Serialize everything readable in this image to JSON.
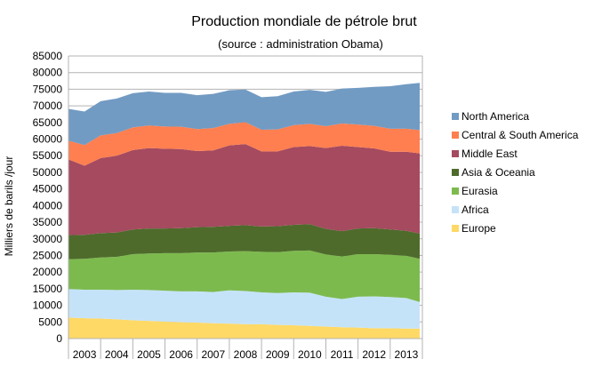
{
  "chart_data": {
    "type": "area",
    "stacked": true,
    "title": "Production mondiale de pétrole brut",
    "subtitle": "(source : administration Obama)",
    "ylabel": "Milliers de barils /jour",
    "xlabel": "",
    "ylim": [
      0,
      85000
    ],
    "y_ticks": [
      0,
      5000,
      10000,
      15000,
      20000,
      25000,
      30000,
      35000,
      40000,
      45000,
      50000,
      55000,
      60000,
      65000,
      70000,
      75000,
      80000,
      85000
    ],
    "grid": "horizontal",
    "legend_position": "right",
    "categories": [
      "2003",
      "2004",
      "2005",
      "2006",
      "2007",
      "2008",
      "2009",
      "2010",
      "2011",
      "2012",
      "2013"
    ],
    "x": [
      "2003-01",
      "2003-07",
      "2004-01",
      "2004-07",
      "2005-01",
      "2005-07",
      "2006-01",
      "2006-07",
      "2007-01",
      "2007-07",
      "2008-01",
      "2008-07",
      "2009-01",
      "2009-07",
      "2010-01",
      "2010-07",
      "2011-01",
      "2011-07",
      "2012-01",
      "2012-07",
      "2013-01",
      "2013-07",
      "2013-12"
    ],
    "series": [
      {
        "name": "Europe",
        "color": "#ffd966",
        "values": [
          6300,
          6100,
          6000,
          5800,
          5500,
          5300,
          5100,
          4900,
          4800,
          4600,
          4500,
          4300,
          4300,
          4100,
          4000,
          3800,
          3600,
          3400,
          3300,
          3100,
          3100,
          3000,
          3000
        ]
      },
      {
        "name": "Africa",
        "color": "#c5e3f8",
        "values": [
          8600,
          8600,
          8700,
          8800,
          9200,
          9300,
          9300,
          9300,
          9400,
          9400,
          10000,
          10000,
          9600,
          9600,
          9900,
          10000,
          9000,
          8500,
          9300,
          9600,
          9400,
          9200,
          8000
        ]
      },
      {
        "name": "Eurasia",
        "color": "#7dba4e",
        "values": [
          9000,
          9300,
          9700,
          10000,
          10700,
          11000,
          11300,
          11500,
          11700,
          11900,
          11700,
          12000,
          12200,
          12300,
          12500,
          12700,
          12700,
          12800,
          12800,
          12700,
          12700,
          12700,
          13000
        ]
      },
      {
        "name": "Asia & Oceania",
        "color": "#4e6b2c",
        "values": [
          7200,
          7200,
          7300,
          7300,
          7400,
          7500,
          7400,
          7500,
          7600,
          7700,
          7700,
          7800,
          7600,
          7800,
          7800,
          7900,
          7700,
          7600,
          7700,
          7800,
          7600,
          7500,
          7600
        ]
      },
      {
        "name": "Middle East",
        "color": "#a54a5f",
        "values": [
          22800,
          20800,
          22600,
          23100,
          23900,
          24200,
          24000,
          23800,
          22900,
          23000,
          24200,
          24400,
          22600,
          22500,
          23400,
          23500,
          24300,
          25700,
          24500,
          24000,
          23400,
          23800,
          24100
        ]
      },
      {
        "name": "Central & South America",
        "color": "#ff7f50",
        "values": [
          5600,
          6200,
          6800,
          6800,
          6800,
          6800,
          6700,
          6700,
          6600,
          6700,
          6500,
          6600,
          6500,
          6600,
          6600,
          6700,
          6600,
          6700,
          6800,
          6800,
          6900,
          6900,
          7000
        ]
      },
      {
        "name": "North America",
        "color": "#729bc3",
        "values": [
          9600,
          10100,
          10300,
          10400,
          10300,
          10200,
          10100,
          10200,
          10200,
          10300,
          10100,
          9800,
          9800,
          10000,
          10100,
          10200,
          10300,
          10500,
          11000,
          11700,
          12800,
          13400,
          14200
        ]
      }
    ]
  }
}
